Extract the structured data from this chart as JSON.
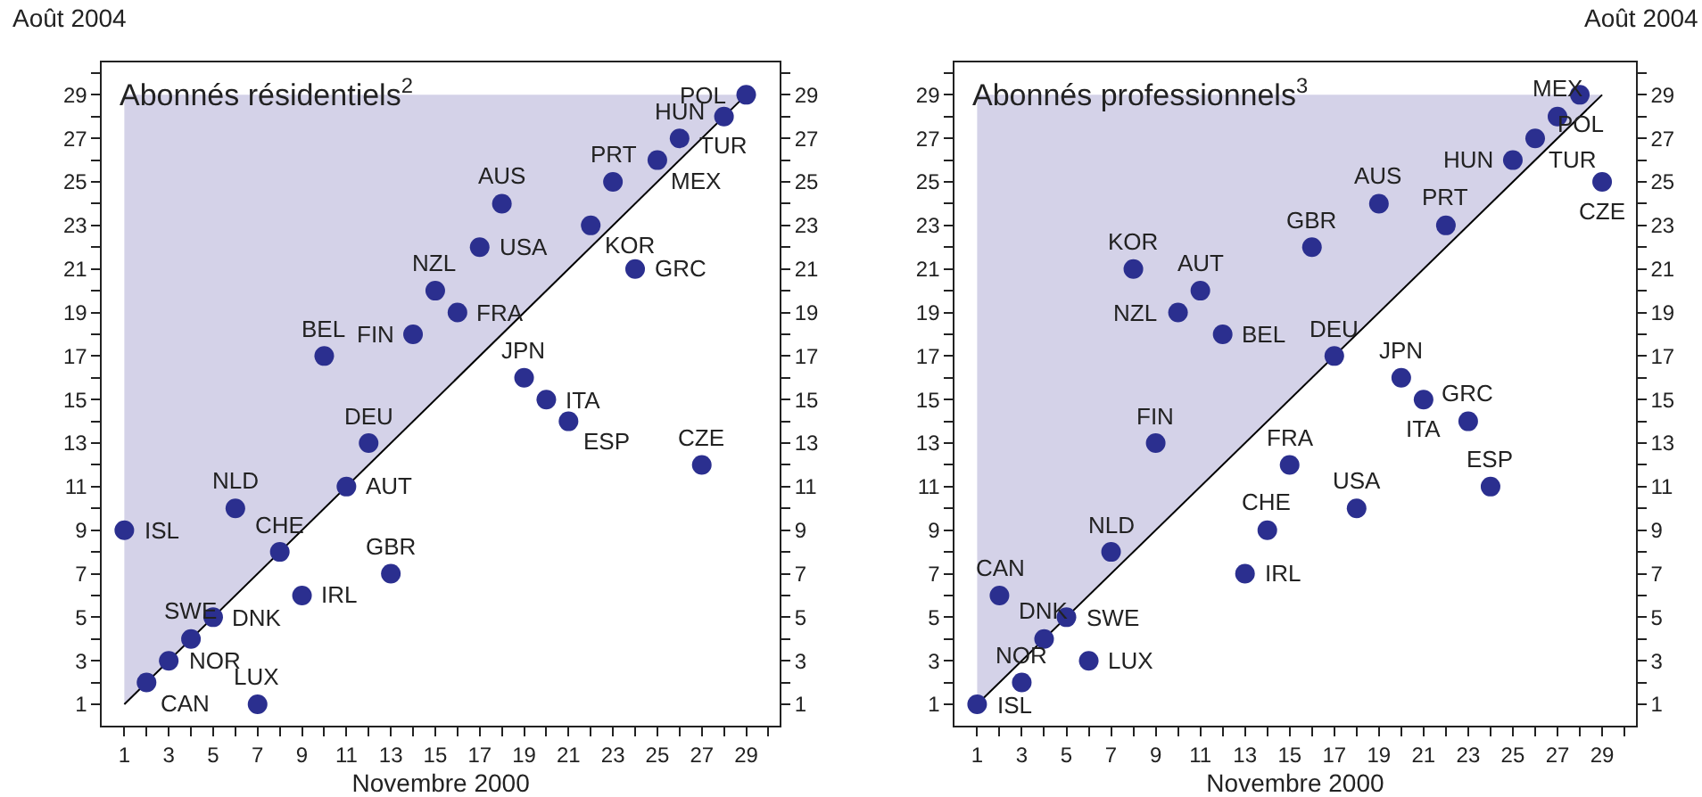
{
  "chart_data": [
    {
      "type": "scatter",
      "title": "Abonnés résidentiels$^{2}$",
      "xlabel": "Novembre 2000",
      "ylabel": "Août 2004",
      "xlim": [
        0,
        30.5
      ],
      "ylim": [
        0,
        30.5
      ],
      "y2lim": [
        0,
        30.5
      ],
      "xticks": [
        1,
        {
          "value": 2,
          "label": null
        },
        3,
        {
          "value": 4,
          "label": null
        },
        5,
        {
          "value": 6,
          "label": null
        },
        7,
        {
          "value": 8,
          "label": null
        },
        9,
        {
          "value": 10,
          "label": null
        },
        11,
        {
          "value": 12,
          "label": null
        },
        13,
        {
          "value": 14,
          "label": null
        },
        15,
        {
          "value": 16,
          "label": null
        },
        17,
        {
          "value": 18,
          "label": null
        },
        19,
        {
          "value": 20,
          "label": null
        },
        21,
        {
          "value": 22,
          "label": null
        },
        23,
        {
          "value": 24,
          "label": null
        },
        25,
        {
          "value": 26,
          "label": null
        },
        27,
        {
          "value": 28,
          "label": null
        },
        29,
        {
          "value": 30,
          "label": null
        }
      ],
      "yticks": [
        1,
        {
          "value": 2,
          "label": null
        },
        3,
        {
          "value": 4,
          "label": null
        },
        5,
        {
          "value": 6,
          "label": null
        },
        7,
        {
          "value": 8,
          "label": null
        },
        9,
        {
          "value": 10,
          "label": null
        },
        11,
        {
          "value": 12,
          "label": null
        },
        13,
        {
          "value": 14,
          "label": null
        },
        15,
        {
          "value": 16,
          "label": null
        },
        17,
        {
          "value": 18,
          "label": null
        },
        19,
        {
          "value": 20,
          "label": null
        },
        21,
        {
          "value": 22,
          "label": null
        },
        23,
        {
          "value": 24,
          "label": null
        },
        25,
        {
          "value": 26,
          "label": null
        },
        27,
        {
          "value": 28,
          "label": null
        },
        29,
        {
          "value": 30,
          "label": null
        }
      ],
      "y2ticks": [
        1,
        {
          "value": 2,
          "label": null
        },
        3,
        {
          "value": 4,
          "label": null
        },
        5,
        {
          "value": 6,
          "label": null
        },
        7,
        {
          "value": 8,
          "label": null
        },
        9,
        {
          "value": 10,
          "label": null
        },
        11,
        {
          "value": 12,
          "label": null
        },
        13,
        {
          "value": 14,
          "label": null
        },
        15,
        {
          "value": 16,
          "label": null
        },
        17,
        {
          "value": 18,
          "label": null
        },
        19,
        {
          "value": 20,
          "label": null
        },
        21,
        {
          "value": 22,
          "label": null
        },
        23,
        {
          "value": 24,
          "label": null
        },
        25,
        {
          "value": 26,
          "label": null
        },
        27,
        {
          "value": 28,
          "label": null
        },
        29,
        {
          "value": 30,
          "label": null
        }
      ],
      "series": [
        {
          "type": "line",
          "color": "#000000",
          "x": [
            1,
            29
          ],
          "values": [
            1,
            29
          ],
          "lower": [
            1,
            29
          ],
          "upper": [
            29,
            29
          ]
        },
        {
          "marker": "circle",
          "color": "#2b2f8f",
          "x": [
            1,
            2,
            3,
            4,
            5,
            6,
            7,
            8,
            9,
            10,
            11,
            12,
            13,
            14,
            15,
            16,
            17,
            18,
            19,
            20,
            21,
            22,
            23,
            24,
            25,
            26,
            27,
            28,
            29
          ],
          "values": [
            9,
            2,
            3,
            4,
            5,
            10,
            1,
            8,
            6,
            17,
            11,
            13,
            7,
            18,
            20,
            19,
            22,
            24,
            16,
            15,
            14,
            23,
            25,
            21,
            26,
            27,
            12,
            28,
            29
          ]
        }
      ],
      "annotations": [
        {
          "text": "ISL",
          "x": 1,
          "y": 9
        },
        {
          "text": "CAN",
          "x": 2,
          "y": 2
        },
        {
          "text": "NOR",
          "x": 3,
          "y": 3
        },
        {
          "text": "SWE",
          "x": 4,
          "y": 4
        },
        {
          "text": "DNK",
          "x": 5,
          "y": 5
        },
        {
          "text": "NLD",
          "x": 6,
          "y": 10
        },
        {
          "text": "LUX",
          "x": 7,
          "y": 1
        },
        {
          "text": "CHE",
          "x": 8,
          "y": 8
        },
        {
          "text": "IRL",
          "x": 9,
          "y": 6
        },
        {
          "text": "BEL",
          "x": 10,
          "y": 17
        },
        {
          "text": "AUT",
          "x": 11,
          "y": 11
        },
        {
          "text": "DEU",
          "x": 12,
          "y": 13
        },
        {
          "text": "GBR",
          "x": 13,
          "y": 7
        },
        {
          "text": "FIN",
          "x": 14,
          "y": 18
        },
        {
          "text": "NZL",
          "x": 15,
          "y": 20
        },
        {
          "text": "FRA",
          "x": 16,
          "y": 19
        },
        {
          "text": "USA",
          "x": 17,
          "y": 22
        },
        {
          "text": "AUS",
          "x": 18,
          "y": 24
        },
        {
          "text": "JPN",
          "x": 19,
          "y": 16
        },
        {
          "text": "ITA",
          "x": 20,
          "y": 15
        },
        {
          "text": "ESP",
          "x": 21,
          "y": 14
        },
        {
          "text": "KOR",
          "x": 22,
          "y": 23
        },
        {
          "text": "PRT",
          "x": 23,
          "y": 25
        },
        {
          "text": "GRC",
          "x": 24,
          "y": 21
        },
        {
          "text": "MEX",
          "x": 25,
          "y": 26
        },
        {
          "text": "HUN",
          "x": 26,
          "y": 27
        },
        {
          "text": "CZE",
          "x": 27,
          "y": 12
        },
        {
          "text": "TUR",
          "x": 28,
          "y": 28
        },
        {
          "text": "POL",
          "x": 29,
          "y": 29
        }
      ]
    },
    {
      "type": "scatter",
      "title": "Abonnés professionnels$^{3}$",
      "xlabel": "Novembre 2000",
      "y2label": "Août 2004",
      "xlim": [
        0,
        30.5
      ],
      "ylim": [
        0,
        30.5
      ],
      "y2lim": [
        0,
        30.5
      ],
      "xticks": [
        1,
        {
          "value": 2,
          "label": null
        },
        3,
        {
          "value": 4,
          "label": null
        },
        5,
        {
          "value": 6,
          "label": null
        },
        7,
        {
          "value": 8,
          "label": null
        },
        9,
        {
          "value": 10,
          "label": null
        },
        11,
        {
          "value": 12,
          "label": null
        },
        13,
        {
          "value": 14,
          "label": null
        },
        15,
        {
          "value": 16,
          "label": null
        },
        17,
        {
          "value": 18,
          "label": null
        },
        19,
        {
          "value": 20,
          "label": null
        },
        21,
        {
          "value": 22,
          "label": null
        },
        23,
        {
          "value": 24,
          "label": null
        },
        25,
        {
          "value": 26,
          "label": null
        },
        27,
        {
          "value": 28,
          "label": null
        },
        29,
        {
          "value": 30,
          "label": null
        }
      ],
      "yticks": [
        1,
        {
          "value": 2,
          "label": null
        },
        3,
        {
          "value": 4,
          "label": null
        },
        5,
        {
          "value": 6,
          "label": null
        },
        7,
        {
          "value": 8,
          "label": null
        },
        9,
        {
          "value": 10,
          "label": null
        },
        11,
        {
          "value": 12,
          "label": null
        },
        13,
        {
          "value": 14,
          "label": null
        },
        15,
        {
          "value": 16,
          "label": null
        },
        17,
        {
          "value": 18,
          "label": null
        },
        19,
        {
          "value": 20,
          "label": null
        },
        21,
        {
          "value": 22,
          "label": null
        },
        23,
        {
          "value": 24,
          "label": null
        },
        25,
        {
          "value": 26,
          "label": null
        },
        27,
        {
          "value": 28,
          "label": null
        },
        29,
        {
          "value": 30,
          "label": null
        }
      ],
      "y2ticks": [
        1,
        {
          "value": 2,
          "label": null
        },
        3,
        {
          "value": 4,
          "label": null
        },
        5,
        {
          "value": 6,
          "label": null
        },
        7,
        {
          "value": 8,
          "label": null
        },
        9,
        {
          "value": 10,
          "label": null
        },
        11,
        {
          "value": 12,
          "label": null
        },
        13,
        {
          "value": 14,
          "label": null
        },
        15,
        {
          "value": 16,
          "label": null
        },
        17,
        {
          "value": 18,
          "label": null
        },
        19,
        {
          "value": 20,
          "label": null
        },
        21,
        {
          "value": 22,
          "label": null
        },
        23,
        {
          "value": 24,
          "label": null
        },
        25,
        {
          "value": 26,
          "label": null
        },
        27,
        {
          "value": 28,
          "label": null
        },
        29,
        {
          "value": 30,
          "label": null
        }
      ],
      "series": [
        {
          "type": "line",
          "color": "#000000",
          "x": [
            1,
            29
          ],
          "values": [
            1,
            29
          ],
          "lower": [
            1,
            29
          ],
          "upper": [
            29,
            29
          ]
        },
        {
          "marker": "circle",
          "color": "#2b2f8f",
          "x": [
            1,
            2,
            3,
            4,
            5,
            6,
            7,
            8,
            9,
            10,
            11,
            12,
            13,
            14,
            15,
            16,
            17,
            18,
            19,
            20,
            21,
            22,
            23,
            24,
            25,
            26,
            27,
            28,
            29
          ],
          "values": [
            1,
            6,
            2,
            4,
            5,
            3,
            8,
            21,
            13,
            19,
            20,
            18,
            7,
            9,
            12,
            22,
            17,
            10,
            24,
            16,
            15,
            23,
            14,
            11,
            26,
            27,
            28,
            29,
            25
          ]
        }
      ],
      "annotations": [
        {
          "text": "ISL",
          "x": 1,
          "y": 1
        },
        {
          "text": "CAN",
          "x": 2,
          "y": 6
        },
        {
          "text": "NOR",
          "x": 3,
          "y": 2
        },
        {
          "text": "DNK",
          "x": 4,
          "y": 4
        },
        {
          "text": "SWE",
          "x": 5,
          "y": 5
        },
        {
          "text": "LUX",
          "x": 6,
          "y": 3
        },
        {
          "text": "NLD",
          "x": 7,
          "y": 8
        },
        {
          "text": "KOR",
          "x": 8,
          "y": 21
        },
        {
          "text": "FIN",
          "x": 9,
          "y": 13
        },
        {
          "text": "NZL",
          "x": 10,
          "y": 19
        },
        {
          "text": "AUT",
          "x": 11,
          "y": 20
        },
        {
          "text": "BEL",
          "x": 12,
          "y": 18
        },
        {
          "text": "IRL",
          "x": 13,
          "y": 7
        },
        {
          "text": "CHE",
          "x": 14,
          "y": 9
        },
        {
          "text": "FRA",
          "x": 15,
          "y": 12
        },
        {
          "text": "GBR",
          "x": 16,
          "y": 22
        },
        {
          "text": "DEU",
          "x": 17,
          "y": 17
        },
        {
          "text": "USA",
          "x": 18,
          "y": 10
        },
        {
          "text": "AUS",
          "x": 19,
          "y": 24
        },
        {
          "text": "JPN",
          "x": 20,
          "y": 16
        },
        {
          "text": "ITA",
          "x": 21,
          "y": 15
        },
        {
          "text": "PRT",
          "x": 22,
          "y": 23
        },
        {
          "text": "GRC",
          "x": 23,
          "y": 14
        },
        {
          "text": "ESP",
          "x": 24,
          "y": 11
        },
        {
          "text": "HUN",
          "x": 25,
          "y": 26
        },
        {
          "text": "TUR",
          "x": 26,
          "y": 27
        },
        {
          "text": "MEX",
          "x": 27,
          "y": 28
        },
        {
          "text": "POL",
          "x": 28,
          "y": 29
        },
        {
          "text": "CZE",
          "x": 29,
          "y": 25
        }
      ]
    }
  ]
}
